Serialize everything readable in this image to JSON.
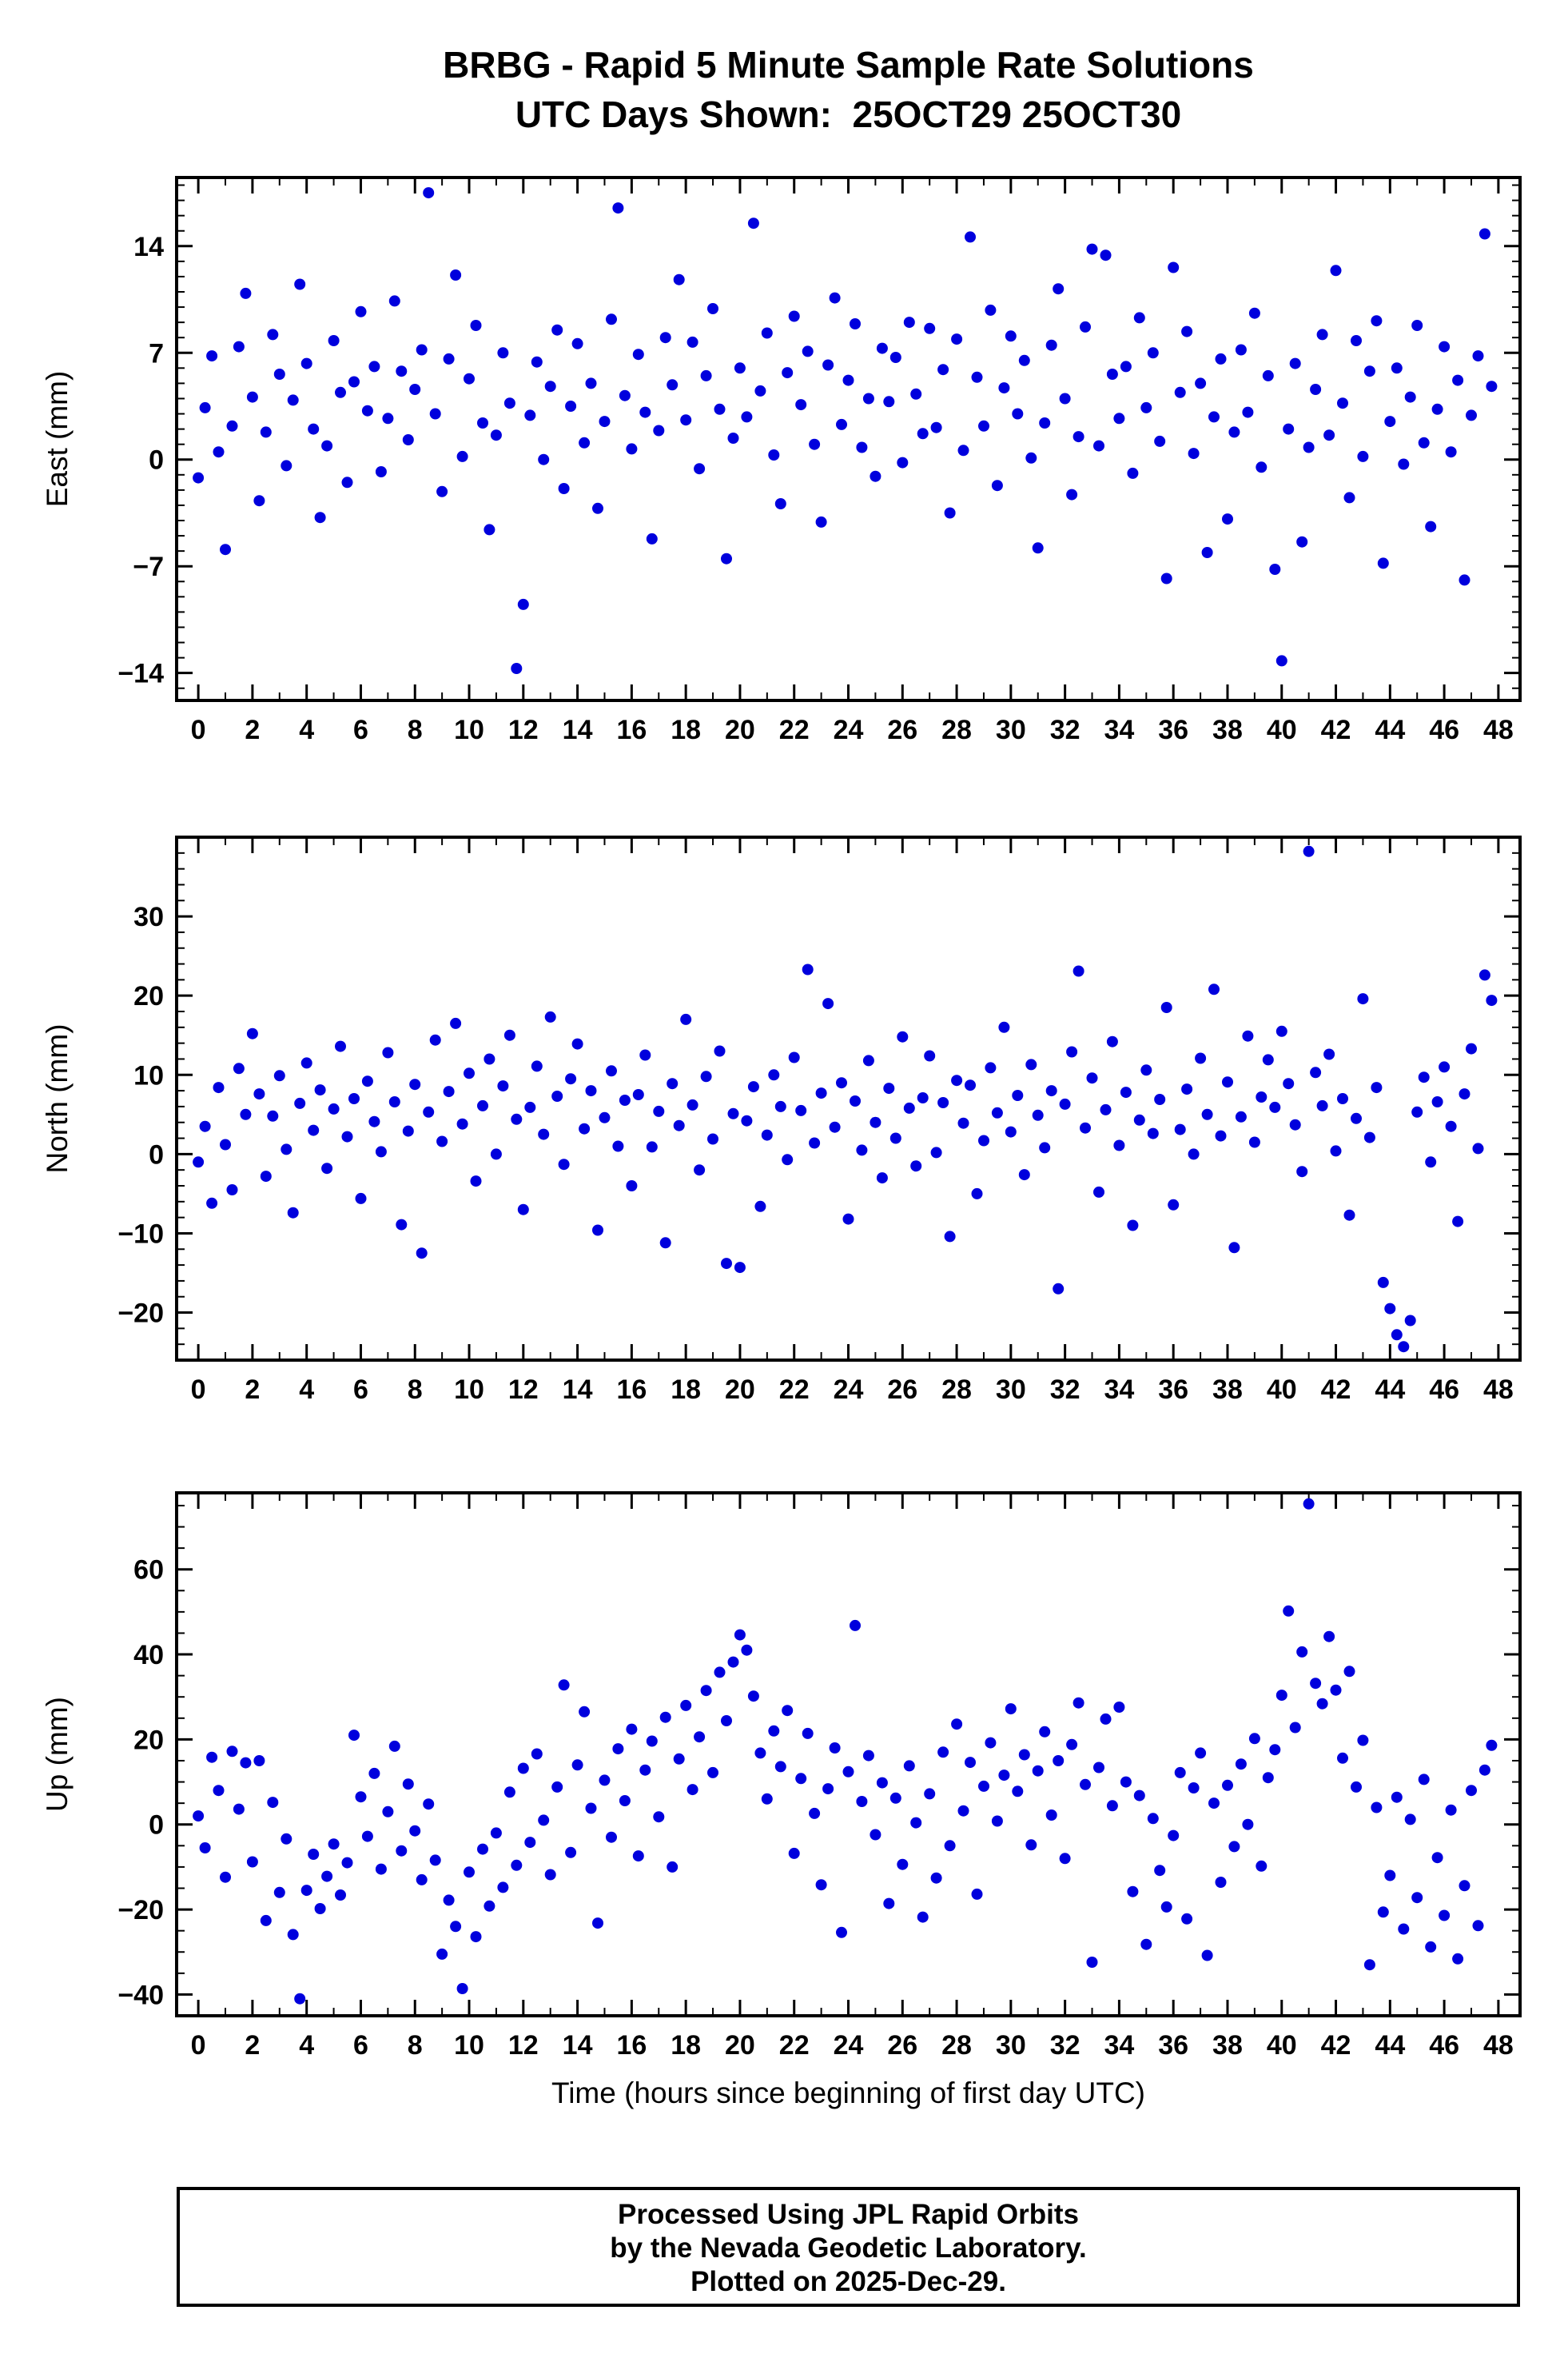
{
  "page": {
    "title_line1": "BRBG - Rapid 5 Minute Sample Rate Solutions",
    "title_line2": "UTC Days Shown:  25OCT29 25OCT30",
    "xlabel": "Time (hours since beginning of first day UTC)",
    "footer_lines": [
      "Processed Using JPL Rapid Orbits",
      "by the Nevada Geodetic Laboratory.",
      "Plotted on 2025-Dec-29."
    ],
    "point_color": "#0000dd",
    "axis_color": "#000000"
  },
  "chart_data": [
    {
      "type": "scatter",
      "name": "East",
      "title": "BRBG - Rapid 5 Minute Sample Rate Solutions",
      "ylabel": "East (mm)",
      "xlabel": "",
      "xlim": [
        -0.8,
        48.8
      ],
      "ylim": [
        -15.8,
        18.5
      ],
      "xticks": [
        0,
        2,
        4,
        6,
        8,
        10,
        12,
        14,
        16,
        18,
        20,
        22,
        24,
        26,
        28,
        30,
        32,
        34,
        36,
        38,
        40,
        42,
        44,
        46,
        48
      ],
      "yticks": [
        -14,
        -7,
        0,
        7,
        14
      ],
      "x_minor_step": 1,
      "y_minor_step": 1,
      "x_start": 0,
      "x_step": 0.25,
      "y": [
        -1.2,
        3.4,
        6.8,
        0.5,
        -5.9,
        2.2,
        7.4,
        10.9,
        4.1,
        -2.7,
        1.8,
        8.2,
        5.6,
        -0.4,
        3.9,
        11.5,
        6.3,
        2.0,
        -3.8,
        0.9,
        7.8,
        4.4,
        -1.5,
        5.1,
        9.7,
        3.2,
        6.1,
        -0.8,
        2.7,
        10.4,
        5.8,
        1.3,
        4.6,
        7.2,
        17.5,
        3.0,
        -2.1,
        6.6,
        12.1,
        0.2,
        5.3,
        8.8,
        2.4,
        -4.6,
        1.6,
        7.0,
        3.7,
        -13.7,
        -9.5,
        2.9,
        6.4,
        0.0,
        4.8,
        8.5,
        -1.9,
        3.5,
        7.6,
        1.1,
        5.0,
        -3.2,
        2.5,
        9.2,
        16.5,
        4.2,
        0.7,
        6.9,
        3.1,
        -5.2,
        1.9,
        8.0,
        4.9,
        11.8,
        2.6,
        7.7,
        -0.6,
        5.5,
        9.9,
        3.3,
        -6.5,
        1.4,
        6.0,
        2.8,
        15.5,
        4.5,
        8.3,
        0.3,
        -2.9,
        5.7,
        9.4,
        3.6,
        7.1,
        1.0,
        -4.1,
        6.2,
        10.6,
        2.3,
        5.2,
        8.9,
        0.8,
        4.0,
        -1.1,
        7.3,
        3.8,
        6.7,
        -0.2,
        9.0,
        4.3,
        1.7,
        8.6,
        2.1,
        5.9,
        -3.5,
        7.9,
        0.6,
        14.6,
        5.4,
        2.2,
        9.8,
        -1.7,
        4.7,
        8.1,
        3.0,
        6.5,
        0.1,
        -5.8,
        2.4,
        7.5,
        11.2,
        4.0,
        -2.3,
        1.5,
        8.7,
        13.8,
        0.9,
        13.4,
        5.6,
        2.7,
        6.1,
        -0.9,
        9.3,
        3.4,
        7.0,
        1.2,
        -7.8,
        12.6,
        4.4,
        8.4,
        0.4,
        5.0,
        -6.1,
        2.8,
        6.6,
        -3.9,
        1.8,
        7.2,
        3.1,
        9.6,
        -0.5,
        5.5,
        -7.2,
        -13.2,
        2.0,
        6.3,
        -5.4,
        0.8,
        4.6,
        8.2,
        1.6,
        12.4,
        3.7,
        -2.5,
        7.8,
        0.2,
        5.8,
        9.1,
        -6.8,
        2.5,
        6.0,
        -0.3,
        4.1,
        8.8,
        1.1,
        -4.4,
        3.3,
        7.4,
        0.5,
        5.2,
        -7.9,
        2.9,
        6.8,
        14.8,
        4.8
      ]
    },
    {
      "type": "scatter",
      "name": "North",
      "title": "",
      "ylabel": "North (mm)",
      "xlabel": "",
      "xlim": [
        -0.8,
        48.8
      ],
      "ylim": [
        -26,
        40
      ],
      "xticks": [
        0,
        2,
        4,
        6,
        8,
        10,
        12,
        14,
        16,
        18,
        20,
        22,
        24,
        26,
        28,
        30,
        32,
        34,
        36,
        38,
        40,
        42,
        44,
        46,
        48
      ],
      "yticks": [
        -20,
        -10,
        0,
        10,
        20,
        30
      ],
      "x_minor_step": 1,
      "y_minor_step": 2,
      "x_start": 0,
      "x_step": 0.25,
      "y": [
        -1.0,
        3.5,
        -6.2,
        8.4,
        1.2,
        -4.5,
        10.8,
        5.0,
        15.2,
        7.6,
        -2.8,
        4.8,
        9.9,
        0.6,
        -7.4,
        6.4,
        11.5,
        3.0,
        8.1,
        -1.8,
        5.7,
        13.6,
        2.2,
        7.0,
        -5.6,
        9.2,
        4.1,
        0.3,
        12.8,
        6.6,
        -8.9,
        2.9,
        8.8,
        -12.5,
        5.3,
        14.4,
        1.6,
        7.9,
        16.5,
        3.8,
        10.2,
        -3.4,
        6.1,
        12.0,
        0.0,
        8.6,
        15.0,
        4.4,
        -7.0,
        5.9,
        11.1,
        2.5,
        17.3,
        7.3,
        -1.3,
        9.5,
        13.9,
        3.2,
        8.0,
        -9.6,
        4.6,
        10.5,
        1.0,
        6.8,
        -4.0,
        7.5,
        12.5,
        0.9,
        5.4,
        -11.2,
        8.9,
        3.6,
        17.0,
        6.2,
        -2.0,
        9.8,
        1.9,
        13.0,
        -13.8,
        5.1,
        -14.3,
        4.2,
        8.5,
        -6.6,
        2.4,
        10.0,
        6.0,
        -0.7,
        12.2,
        5.5,
        23.3,
        1.4,
        7.7,
        19.0,
        3.4,
        9.0,
        -8.2,
        6.7,
        0.5,
        11.8,
        4.0,
        -3.0,
        8.3,
        2.0,
        14.8,
        5.8,
        -1.5,
        7.1,
        12.4,
        0.2,
        6.5,
        -10.4,
        9.3,
        3.9,
        8.7,
        -5.0,
        1.7,
        10.9,
        5.2,
        16.0,
        2.8,
        7.4,
        -2.6,
        11.3,
        4.9,
        0.8,
        8.0,
        -17.0,
        6.3,
        12.9,
        23.1,
        3.3,
        9.6,
        -4.8,
        5.6,
        14.2,
        1.1,
        7.8,
        -9.0,
        4.3,
        10.6,
        2.6,
        6.9,
        18.5,
        -6.4,
        3.1,
        8.2,
        0.0,
        12.1,
        5.0,
        20.8,
        2.3,
        9.1,
        -11.8,
        4.7,
        14.9,
        1.5,
        7.2,
        11.9,
        5.9,
        15.5,
        8.9,
        3.7,
        -2.2,
        38.2,
        10.3,
        6.1,
        12.6,
        0.4,
        7.0,
        -7.7,
        4.5,
        19.6,
        2.1,
        8.4,
        -16.2,
        -19.5,
        -22.8,
        -24.3,
        -21.0,
        5.3,
        9.7,
        -1.0,
        6.6,
        11.0,
        3.5,
        -8.5,
        7.6,
        13.3,
        0.7,
        22.6,
        19.4
      ]
    },
    {
      "type": "scatter",
      "name": "Up",
      "title": "",
      "ylabel": "Up (mm)",
      "xlabel": "Time (hours since beginning of first day UTC)",
      "xlim": [
        -0.8,
        48.8
      ],
      "ylim": [
        -45,
        78
      ],
      "xticks": [
        0,
        2,
        4,
        6,
        8,
        10,
        12,
        14,
        16,
        18,
        20,
        22,
        24,
        26,
        28,
        30,
        32,
        34,
        36,
        38,
        40,
        42,
        44,
        46,
        48
      ],
      "yticks": [
        -40,
        -20,
        0,
        20,
        40,
        60
      ],
      "x_minor_step": 1,
      "y_minor_step": 5,
      "x_start": 0,
      "x_step": 0.25,
      "y": [
        2.0,
        -5.5,
        15.8,
        8.0,
        -12.4,
        17.2,
        3.6,
        14.5,
        -8.8,
        15.0,
        -22.6,
        5.2,
        -16.0,
        -3.4,
        -25.9,
        -41.0,
        -15.5,
        -7.0,
        -19.8,
        -12.2,
        -4.6,
        -16.6,
        -9.0,
        21.0,
        6.5,
        -2.8,
        12.0,
        -10.5,
        3.0,
        18.4,
        -6.2,
        9.5,
        -1.5,
        -13.0,
        4.8,
        -8.4,
        -30.5,
        -17.8,
        -24.0,
        -38.6,
        -11.2,
        -26.4,
        -5.8,
        -19.2,
        -2.0,
        -14.8,
        7.6,
        -9.6,
        13.2,
        -4.2,
        16.6,
        1.0,
        -11.8,
        8.8,
        32.8,
        -6.6,
        14.0,
        26.5,
        3.8,
        -23.2,
        10.4,
        -3.0,
        17.8,
        5.6,
        22.4,
        -7.4,
        12.8,
        19.6,
        1.8,
        25.2,
        -10.0,
        15.4,
        28.0,
        8.2,
        20.6,
        31.5,
        12.2,
        35.8,
        24.4,
        38.2,
        44.6,
        41.0,
        30.2,
        16.8,
        6.0,
        22.0,
        13.6,
        26.8,
        -6.8,
        10.8,
        21.4,
        2.6,
        -14.2,
        8.4,
        18.0,
        -25.4,
        12.4,
        46.8,
        5.4,
        16.2,
        -2.4,
        9.8,
        -18.6,
        6.2,
        -9.4,
        13.8,
        0.4,
        -21.8,
        7.2,
        -12.6,
        17.0,
        -5.0,
        23.6,
        3.2,
        14.6,
        -16.4,
        9.0,
        19.2,
        0.8,
        11.6,
        27.2,
        7.8,
        16.4,
        -4.8,
        12.6,
        21.8,
        2.2,
        15.0,
        -8.0,
        18.8,
        28.6,
        9.4,
        -32.4,
        13.4,
        24.8,
        4.4,
        27.6,
        10.0,
        -15.8,
        6.8,
        -28.2,
        1.4,
        -10.8,
        -19.4,
        -2.6,
        12.2,
        -22.2,
        8.6,
        16.8,
        -30.8,
        5.0,
        -13.6,
        9.2,
        -5.2,
        14.2,
        0.0,
        20.2,
        -9.8,
        11.0,
        17.6,
        30.4,
        50.2,
        22.8,
        40.6,
        75.4,
        33.2,
        28.4,
        44.2,
        31.6,
        15.6,
        36.0,
        8.8,
        19.8,
        -33.0,
        4.0,
        -20.6,
        -12.0,
        6.4,
        -24.6,
        1.2,
        -17.2,
        10.6,
        -28.8,
        -7.8,
        -21.4,
        3.4,
        -31.6,
        -14.4,
        8.0,
        -23.8,
        12.8,
        18.6
      ]
    }
  ]
}
